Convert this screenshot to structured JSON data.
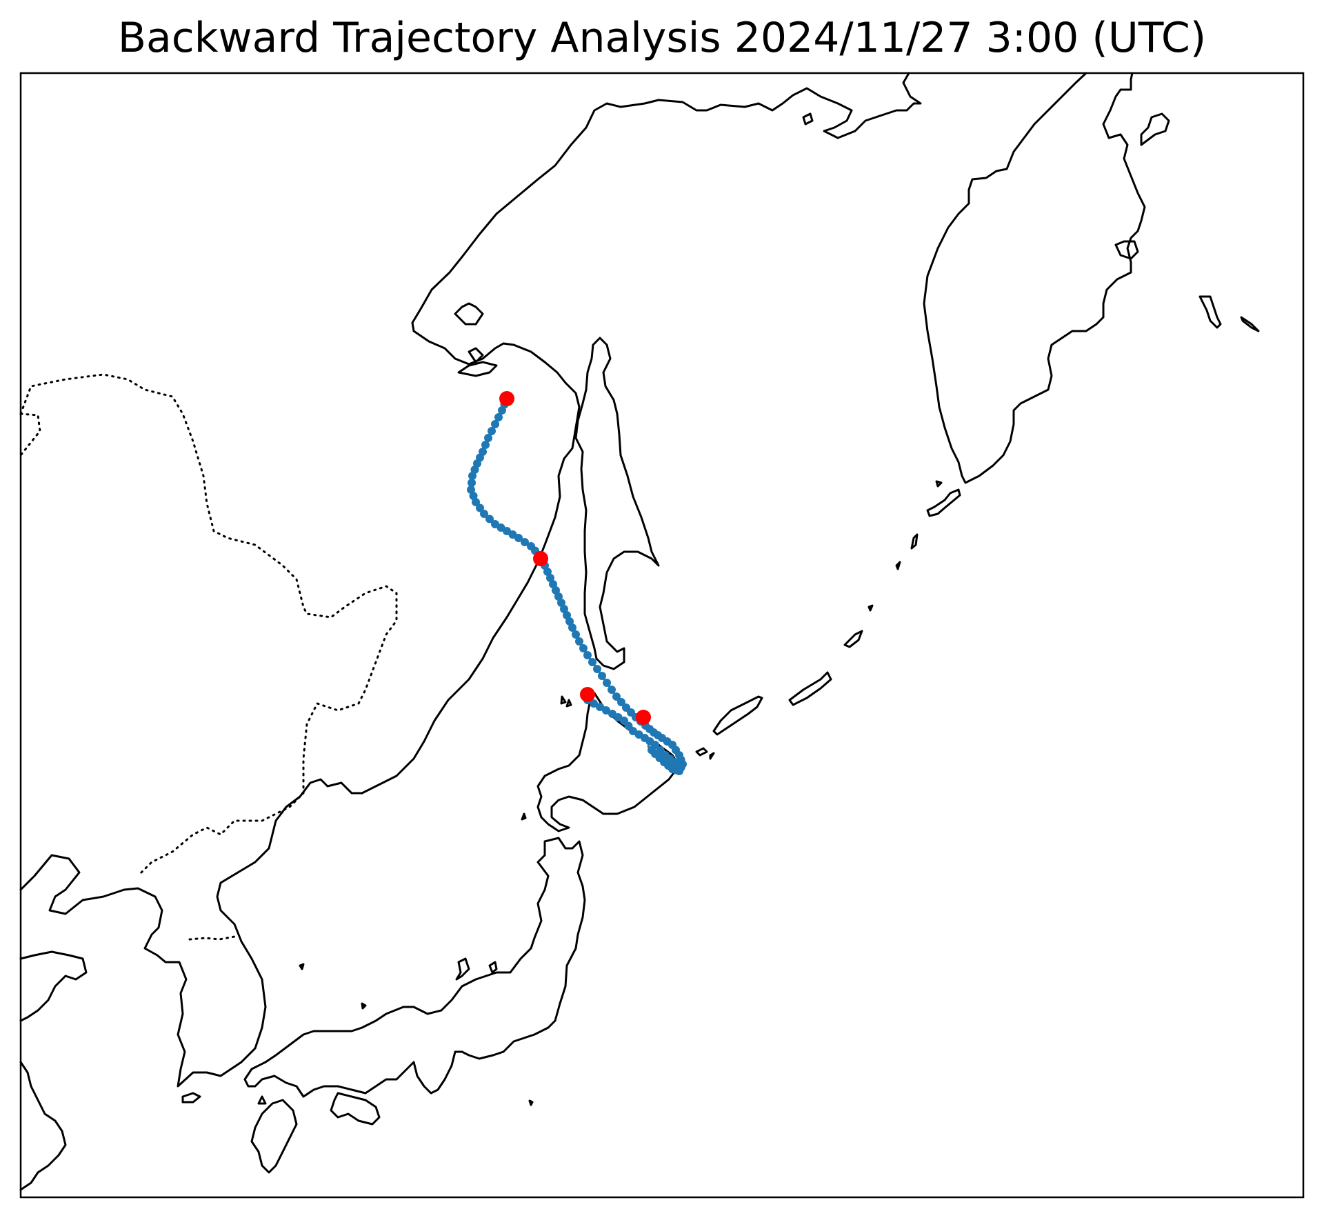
{
  "title": "Backward Trajectory Analysis 2024/11/27 3:00 (UTC)",
  "colors": {
    "background": "#ffffff",
    "coastline": "#000000",
    "border": "#000000",
    "trajectory": "#1f77b4",
    "marker": "#ff0000"
  },
  "map": {
    "projection": "plate-carree",
    "frame": true,
    "features": [
      "coastline",
      "national-border-dotted"
    ]
  },
  "trajectory": {
    "point_icon": "circle-dot",
    "marker_icon": "circle-dot"
  }
}
